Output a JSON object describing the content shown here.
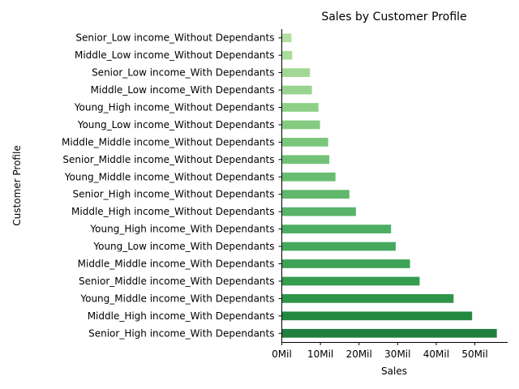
{
  "chart_data": {
    "type": "bar",
    "orientation": "horizontal",
    "title": "Sales by Customer Profile",
    "xlabel": "Sales",
    "ylabel": "Customer Profile",
    "xlim": [
      0,
      58.5
    ],
    "x_ticks": [
      0,
      10,
      20,
      30,
      40,
      50
    ],
    "x_tick_labels": [
      "0Mil",
      "10Mil",
      "20Mil",
      "30Mil",
      "40Mil",
      "50Mil"
    ],
    "grid": false,
    "legend": "none",
    "categories": [
      "Senior_High income_With Dependants",
      "Middle_High income_With Dependants",
      "Young_Middle income_With Dependants",
      "Senior_Middle income_With Dependants",
      "Middle_Middle income_With Dependants",
      "Young_Low income_With Dependants",
      "Young_High income_With Dependants",
      "Middle_High income_Without Dependants",
      "Senior_High income_Without Dependants",
      "Young_Middle income_Without Dependants",
      "Senior_Middle income_Without Dependants",
      "Middle_Middle income_Without Dependants",
      "Young_Low income_Without Dependants",
      "Young_High income_Without Dependants",
      "Middle_Low income_With Dependants",
      "Senior_Low income_With Dependants",
      "Middle_Low income_Without Dependants",
      "Senior_Low income_Without Dependants"
    ],
    "values": [
      55.7,
      49.3,
      44.5,
      35.7,
      33.2,
      29.5,
      28.3,
      19.2,
      17.5,
      13.9,
      12.3,
      12.0,
      9.9,
      9.5,
      7.8,
      7.3,
      2.7,
      2.5
    ],
    "bar_colors": [
      "#1f7f3c",
      "#23893f",
      "#2e9448",
      "#359d4e",
      "#3da356",
      "#45a95d",
      "#4dae63",
      "#57b468",
      "#5fb86c",
      "#68bd71",
      "#71c276",
      "#7ac77c",
      "#84cb82",
      "#8ecf88",
      "#98d48f",
      "#a2d895",
      "#abdc9b",
      "#b3e0a2"
    ]
  }
}
